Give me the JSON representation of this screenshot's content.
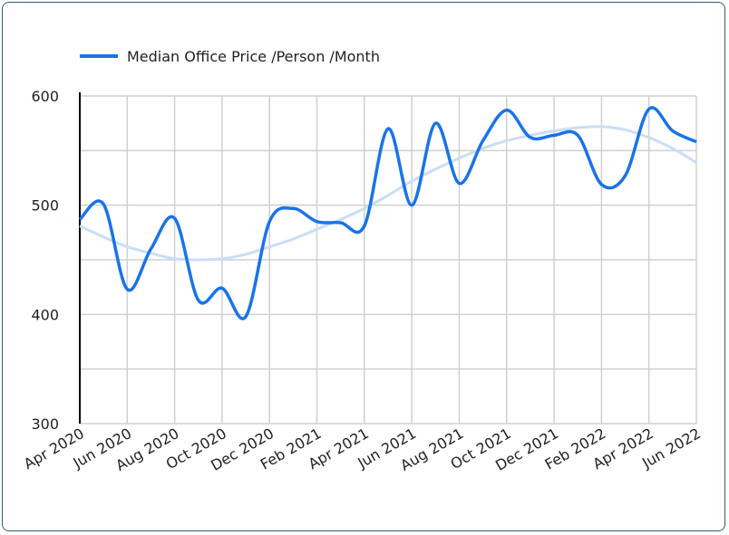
{
  "chart_data": {
    "type": "line",
    "categories": [
      "Apr 2020",
      null,
      "Jun 2020",
      null,
      "Aug 2020",
      null,
      "Oct 2020",
      null,
      "Dec 2020",
      null,
      "Feb 2021",
      null,
      "Apr 2021",
      null,
      "Jun 2021",
      null,
      "Aug 2021",
      null,
      "Oct 2021",
      null,
      "Dec 2021",
      null,
      "Feb 2022",
      null,
      "Apr 2022",
      null,
      "Jun 2022"
    ],
    "series": [
      {
        "name": "Median Office Price /Person /Month",
        "color": "#1a73e8",
        "values": [
          487,
          501,
          423,
          460,
          488,
          413,
          424,
          398,
          485,
          497,
          485,
          484,
          481,
          570,
          500,
          575,
          520,
          559,
          587,
          562,
          564,
          564,
          519,
          527,
          588,
          568,
          558
        ]
      },
      {
        "color": "#c9def7",
        "values": [
          481,
          471,
          462,
          456,
          451,
          450,
          451,
          455,
          462,
          469,
          478,
          487,
          497,
          509,
          522,
          533,
          543,
          552,
          559,
          564,
          568,
          571,
          572,
          569,
          562,
          552,
          539
        ]
      }
    ],
    "ylim": [
      300,
      600
    ],
    "yticks": [
      300,
      400,
      500,
      600
    ],
    "minor_yticks": [
      350,
      450,
      550
    ],
    "grid": true,
    "legend": "top"
  }
}
